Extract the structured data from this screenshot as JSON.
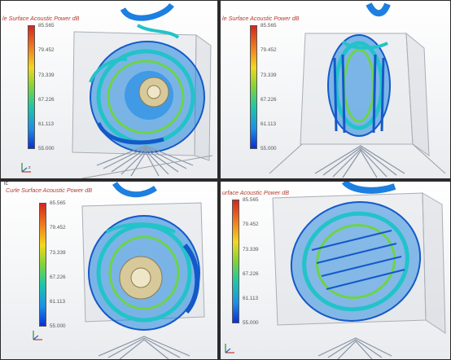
{
  "legend": {
    "title_variants": [
      "le Surface Acoustic Power dB",
      "le Surface Acoustic Power dB",
      "Curle Surface Acoustic Power dB",
      "urface Acoustic Power dB"
    ],
    "ticks": [
      "85.565",
      "79.452",
      "73.339",
      "67.226",
      "61.113",
      "55.000"
    ],
    "range": [
      55.0,
      85.565
    ]
  },
  "panes": [
    {
      "name": "top-left-view",
      "corner": ""
    },
    {
      "name": "top-right-view",
      "corner": ""
    },
    {
      "name": "bottom-left-view",
      "corner": "ic"
    },
    {
      "name": "bottom-right-view",
      "corner": ""
    }
  ],
  "colors": {
    "iso_blue": "#1d7fe0",
    "iso_cyan": "#22c3c9",
    "iso_green": "#6cd44a",
    "housing": "#c9ced6",
    "hub": "#d8c99a",
    "border": "#1a1a1a"
  }
}
